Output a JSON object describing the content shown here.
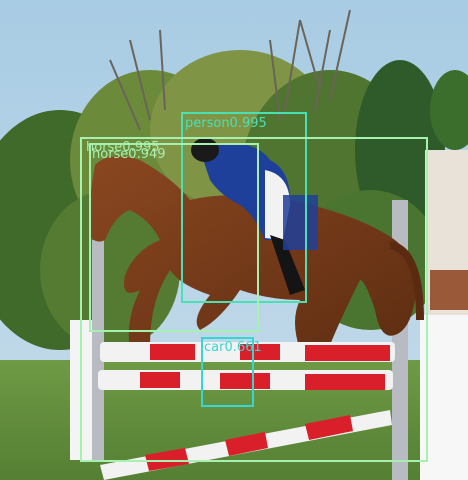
{
  "image": {
    "description_objects": [
      "sky",
      "trees",
      "horse",
      "rider",
      "show-jumping fence",
      "grass"
    ],
    "colors": {
      "sky": "#9ec4de",
      "grass": "#5f8c3c",
      "horse": "#7a3d1c",
      "jacket": "#1e3f9a",
      "rail_red": "#d9202a",
      "rail_white": "#f2f2f2"
    }
  },
  "detections": [
    {
      "label": "person0.995",
      "color": "#4be0b4"
    },
    {
      "label": "horse0.949",
      "color": "#a6f0b0"
    },
    {
      "label": "horse0.995",
      "color": "#a6f0b0"
    },
    {
      "label": "car0.661",
      "color": "#38d6d0"
    }
  ]
}
